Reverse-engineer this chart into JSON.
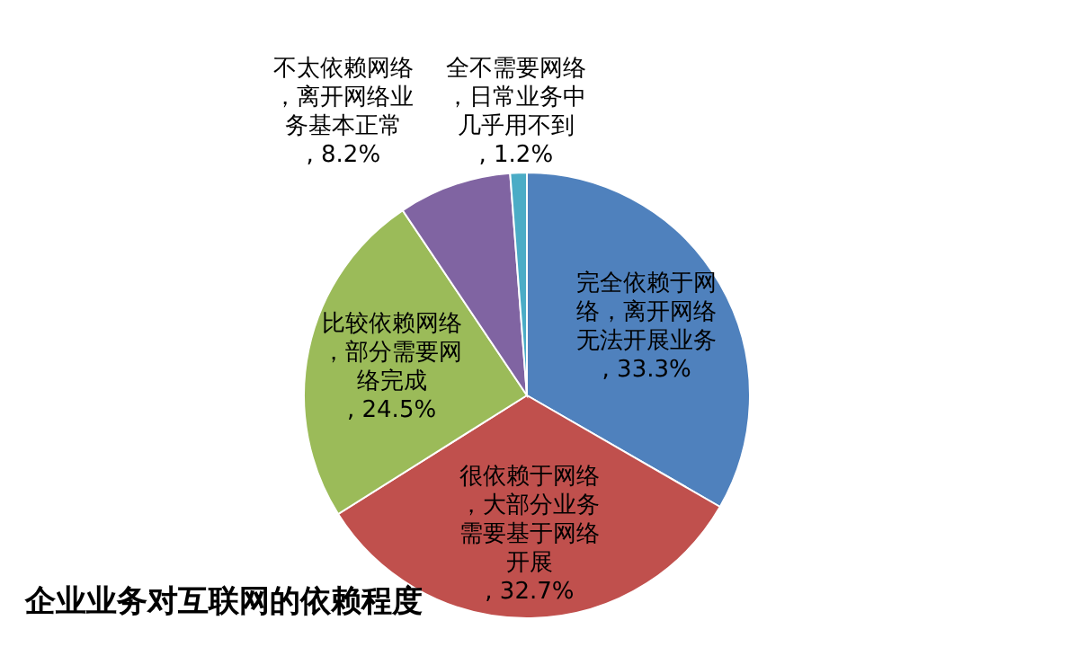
{
  "chart_data": {
    "type": "pie",
    "title": "企业业务对互联网的依赖程度",
    "categories": [
      "完全依赖于网络，离开网络无法开展业务",
      "很依赖于网络，大部分业务需要基于网络开展",
      "比较依赖网络，部分需要网络完成",
      "不太依赖网络，离开网络业务基本正常",
      "全不需要网络，日常业务中几乎用不到"
    ],
    "values": [
      33.3,
      32.7,
      24.5,
      8.2,
      1.2
    ],
    "value_labels": [
      ", 33.3%",
      ", 32.7%",
      ", 24.5%",
      ", 8.2%",
      ", 1.2%"
    ],
    "colors": [
      "#4f81bd",
      "#c0504d",
      "#9bbb59",
      "#8064a2",
      "#4bacc6"
    ]
  }
}
